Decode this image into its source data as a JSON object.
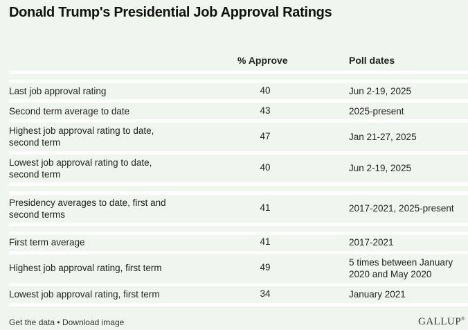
{
  "chart_data": {
    "type": "table",
    "title": "Donald Trump's Presidential Job Approval Ratings",
    "columns": [
      "",
      "% Approve",
      "Poll dates"
    ],
    "rows": [
      {
        "label": "Last job approval rating",
        "approve": "40",
        "dates": "Jun 2-19, 2025"
      },
      {
        "label": "Second term average to date",
        "approve": "43",
        "dates": "2025-present"
      },
      {
        "label": "Highest job approval rating to date, second term",
        "approve": "47",
        "dates": "Jan 21-27, 2025"
      },
      {
        "label": "Lowest job approval rating to date, second term",
        "approve": "40",
        "dates": "Jun 2-19, 2025"
      },
      {
        "label": "Presidency averages to date, first and second terms",
        "approve": "41",
        "dates": "2017-2021, 2025-present"
      },
      {
        "label": "First term average",
        "approve": "41",
        "dates": "2017-2021"
      },
      {
        "label": "Highest job approval rating, first term",
        "approve": "49",
        "dates": "5 times between January 2020 and May 2020"
      },
      {
        "label": "Lowest job approval rating, first term",
        "approve": "34",
        "dates": "January 2021"
      }
    ]
  },
  "footer": {
    "get_data": "Get the data",
    "separator": "•",
    "download": "Download image"
  },
  "brand": {
    "logo": "GALLUP",
    "mark": "®"
  }
}
